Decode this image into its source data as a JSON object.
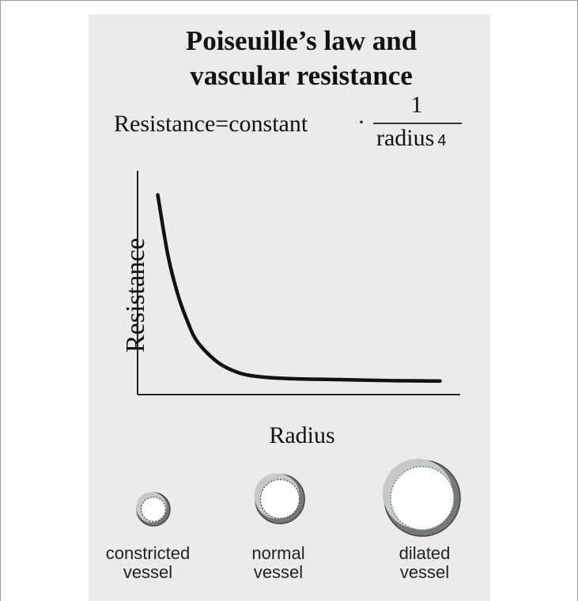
{
  "title": {
    "line1": "Poiseuille’s law and",
    "line2": "vascular resistance"
  },
  "formula": {
    "lhs": "Resistance=constant",
    "operator": "·",
    "numerator": "1",
    "denominator": "radius",
    "exponent": "4"
  },
  "chart_data": {
    "type": "line",
    "xlabel": "Radius",
    "ylabel": "Resistance",
    "x": [
      0.2,
      0.3,
      0.4,
      0.5,
      0.6,
      0.8,
      1.0,
      1.2,
      1.5,
      2.0,
      2.5,
      3.0
    ],
    "y": [
      100,
      70,
      50,
      36,
      26,
      16,
      11,
      9,
      8,
      7.5,
      7,
      6.8
    ],
    "xlim": [
      0,
      3.2
    ],
    "ylim": [
      0,
      112
    ],
    "grid": false
  },
  "vessels": [
    {
      "label_line1": "constricted",
      "label_line2": "vessel",
      "radius_level": 0.2
    },
    {
      "label_line1": "normal",
      "label_line2": "vessel",
      "radius_level": 0.5
    },
    {
      "label_line1": "dilated",
      "label_line2": "vessel",
      "radius_level": 1.0
    }
  ],
  "colors": {
    "panel_background": "#ebebeb",
    "curve": "#111111",
    "vessel_wall": "#777777",
    "vessel_lumen": "#ffffff",
    "vessel_inner_dash": "#555555",
    "dilated_inner_dash": "#4a9a4a"
  }
}
